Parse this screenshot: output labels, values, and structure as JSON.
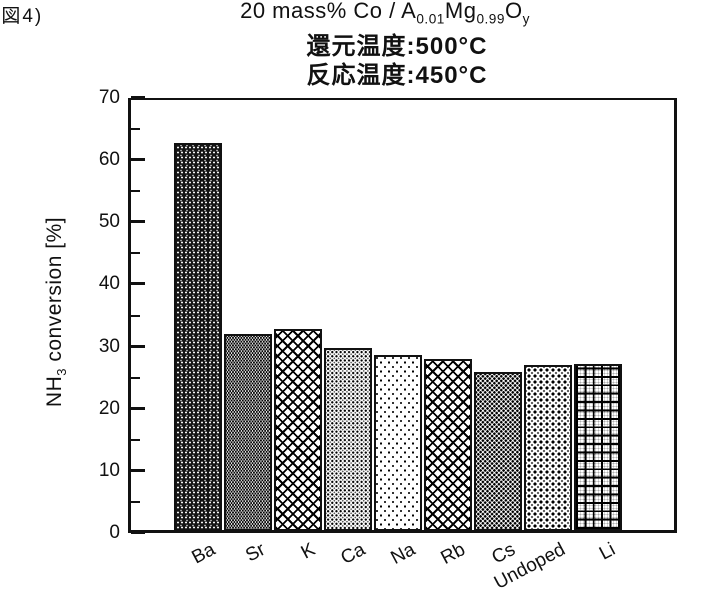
{
  "figure_label": "(図4)",
  "chart_data": {
    "type": "bar",
    "title_plain": "20 mass% Co / A0.01Mg0.99Oy",
    "title_formula_segments": [
      {
        "t": "20 mass% Co / A",
        "s": false
      },
      {
        "t": "0.01",
        "s": true
      },
      {
        "t": "Mg",
        "s": false
      },
      {
        "t": "0.99",
        "s": true
      },
      {
        "t": "O",
        "s": false
      },
      {
        "t": "y",
        "s": true
      }
    ],
    "subtitle_reduction": "還元温度:500°C",
    "subtitle_reaction": "反応温度:450°C",
    "categories": [
      "Ba",
      "Sr",
      "K",
      "Ca",
      "Na",
      "Rb",
      "Cs",
      "Undoped",
      "Li"
    ],
    "values": [
      62.3,
      31.5,
      32.4,
      29.3,
      28.2,
      27.5,
      25.4,
      26.6,
      26.7
    ],
    "bar_patterns": [
      "dark-speckle",
      "fine-dots",
      "crosshatch",
      "dot-grid",
      "sparse-dots",
      "crosshatch",
      "dot-checker",
      "dot-columns",
      "square-grid"
    ],
    "xlabel": "",
    "ylabel_plain": "NH3 conversion [%]",
    "ylabel_segments": [
      {
        "t": "NH",
        "s": false
      },
      {
        "t": "3",
        "s": true
      },
      {
        "t": " conversion [%]",
        "s": false
      }
    ],
    "ylim": [
      0,
      70
    ],
    "yticks_major": [
      0,
      10,
      20,
      30,
      40,
      50,
      60,
      70
    ],
    "yticks_minor": [
      5,
      15,
      25,
      35,
      45,
      55,
      65
    ],
    "grid": false,
    "legend": "none",
    "style": "monochrome-hatched-scan",
    "ink_color": "#111111",
    "background_color": "#ffffff"
  }
}
